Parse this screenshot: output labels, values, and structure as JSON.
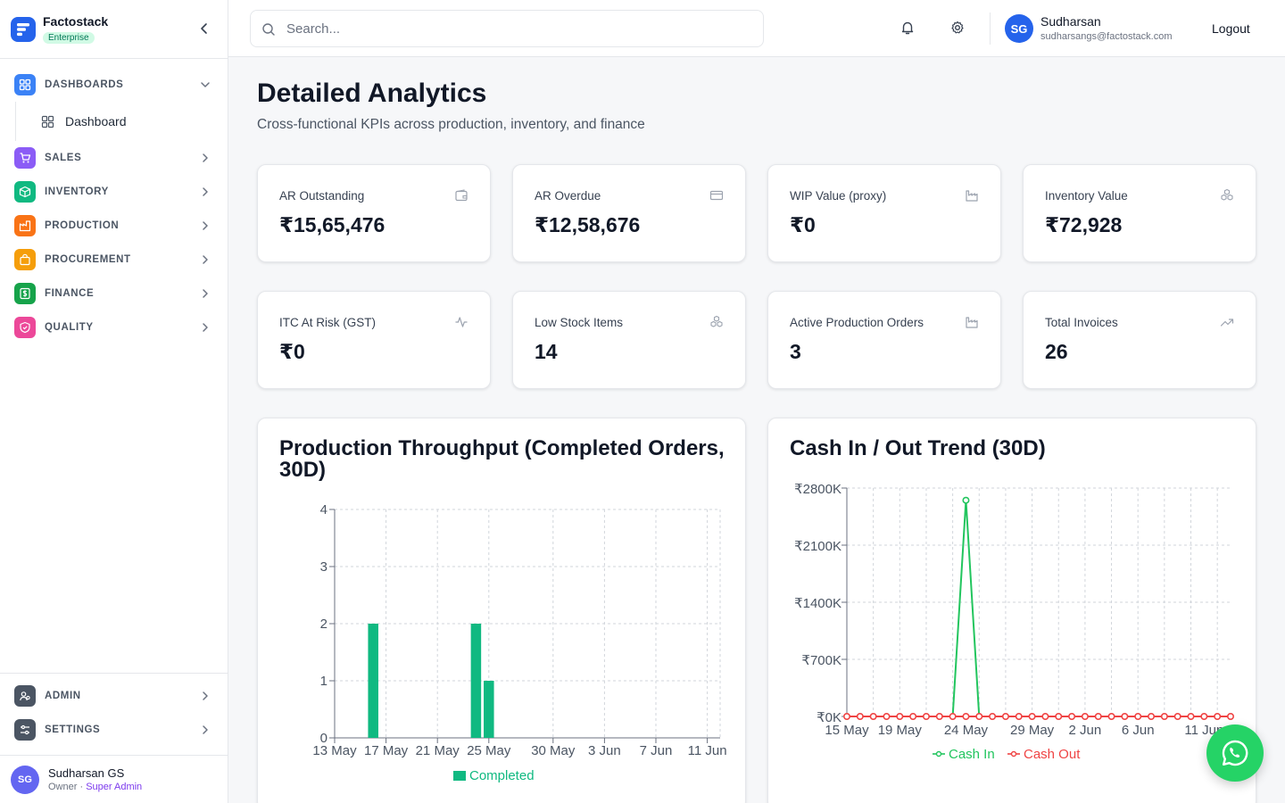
{
  "brand": {
    "name": "Factostack",
    "badge": "Enterprise"
  },
  "sidebar": {
    "items": [
      {
        "label": "DASHBOARDS",
        "icon": "grid-icon",
        "color": "#3b82f6",
        "expanded": true
      },
      {
        "label": "SALES",
        "icon": "cart-icon",
        "color": "#8b5cf6"
      },
      {
        "label": "INVENTORY",
        "icon": "box-icon",
        "color": "#10b981"
      },
      {
        "label": "PRODUCTION",
        "icon": "factory-icon",
        "color": "#f97316"
      },
      {
        "label": "PROCUREMENT",
        "icon": "bag-icon",
        "color": "#f59e0b"
      },
      {
        "label": "FINANCE",
        "icon": "dollar-icon",
        "color": "#16a34a"
      },
      {
        "label": "QUALITY",
        "icon": "shield-icon",
        "color": "#ec4899"
      }
    ],
    "sub_items": [
      {
        "label": "Dashboard"
      }
    ],
    "bottom_items": [
      {
        "label": "ADMIN",
        "icon": "users-icon",
        "color": "#4b5563"
      },
      {
        "label": "SETTINGS",
        "icon": "sliders-icon",
        "color": "#4b5563"
      }
    ],
    "user": {
      "initials": "SG",
      "name": "Sudharsan GS",
      "role": "Owner",
      "sep": " · ",
      "admin": "Super Admin"
    }
  },
  "header": {
    "search_placeholder": "Search...",
    "user_initials": "SG",
    "user_name": "Sudharsan",
    "user_email": "sudharsangs@factostack.com",
    "logout": "Logout"
  },
  "page": {
    "title": "Detailed Analytics",
    "subtitle": "Cross-functional KPIs across production, inventory, and finance"
  },
  "kpis": [
    {
      "label": "AR Outstanding",
      "value": "₹15,65,476",
      "icon": "wallet-icon"
    },
    {
      "label": "AR Overdue",
      "value": "₹12,58,676",
      "icon": "credit-card-icon"
    },
    {
      "label": "WIP Value (proxy)",
      "value": "₹0",
      "icon": "factory-icon"
    },
    {
      "label": "Inventory Value",
      "value": "₹72,928",
      "icon": "boxes-icon"
    },
    {
      "label": "ITC At Risk (GST)",
      "value": "₹0",
      "icon": "activity-icon"
    },
    {
      "label": "Low Stock Items",
      "value": "14",
      "icon": "boxes-icon"
    },
    {
      "label": "Active Production Orders",
      "value": "3",
      "icon": "factory-icon"
    },
    {
      "label": "Total Invoices",
      "value": "26",
      "icon": "trending-up-icon"
    }
  ],
  "chart_data": [
    {
      "type": "bar",
      "title": "Production Throughput (Completed Orders, 30D)",
      "title_lines": [
        "Production Throughput (Completed Orders,",
        "30D)"
      ],
      "x_start": "2025-05-13",
      "x_end": "2025-06-12",
      "x_tick_labels": [
        "13 May",
        "17 May",
        "21 May",
        "25 May",
        "30 May",
        "3 Jun",
        "7 Jun",
        "11 Jun"
      ],
      "x_tick_dates": [
        "2025-05-13",
        "2025-05-17",
        "2025-05-21",
        "2025-05-25",
        "2025-05-30",
        "2025-06-03",
        "2025-06-07",
        "2025-06-11"
      ],
      "ylim": [
        0,
        4
      ],
      "y_ticks": [
        0,
        1,
        2,
        3,
        4
      ],
      "series": [
        {
          "name": "Completed",
          "color": "#10b981",
          "points": [
            {
              "x": "2025-05-16",
              "y": 2
            },
            {
              "x": "2025-05-24",
              "y": 2
            },
            {
              "x": "2025-05-25",
              "y": 1
            }
          ]
        }
      ],
      "grid": true,
      "legend": "bottom"
    },
    {
      "type": "line",
      "title": "Cash In / Out Trend (30D)",
      "x_tick_labels": [
        "15 May",
        "19 May",
        "24 May",
        "29 May",
        "2 Jun",
        "6 Jun",
        "11 Jun"
      ],
      "x_tick_index": [
        0,
        4,
        9,
        14,
        18,
        22,
        27
      ],
      "y_tick_labels": [
        "₹0K",
        "₹700K",
        "₹1400K",
        "₹2100K",
        "₹2800K"
      ],
      "y_ticks": [
        0,
        700,
        1400,
        2100,
        2800
      ],
      "ylim": [
        0,
        2800
      ],
      "y_unit": "thousand ₹",
      "series": [
        {
          "name": "Cash In",
          "color": "#22c55e",
          "values": [
            0,
            0,
            0,
            0,
            0,
            0,
            0,
            0,
            0,
            2650,
            0,
            0,
            0,
            0,
            0,
            0,
            0,
            0,
            0,
            0,
            0,
            0,
            0,
            0,
            0,
            0,
            0,
            0,
            0,
            0
          ]
        },
        {
          "name": "Cash Out",
          "color": "#ef4444",
          "values": [
            0,
            0,
            0,
            0,
            0,
            0,
            0,
            0,
            0,
            0,
            0,
            0,
            0,
            0,
            0,
            0,
            0,
            0,
            0,
            0,
            0,
            0,
            0,
            0,
            0,
            0,
            0,
            0,
            0,
            0
          ]
        }
      ],
      "grid": true,
      "legend": "bottom"
    }
  ]
}
